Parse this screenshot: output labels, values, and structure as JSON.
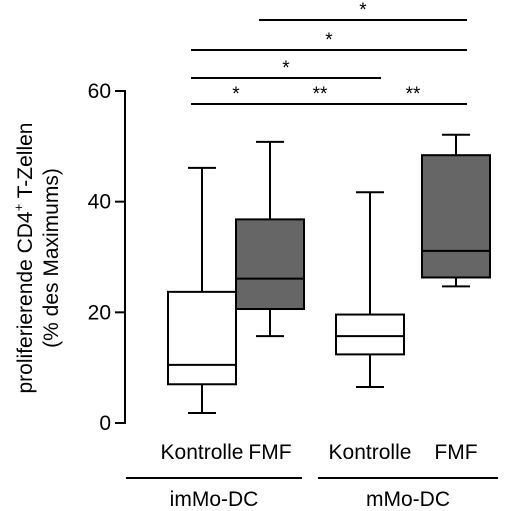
{
  "chart_data": {
    "type": "box",
    "ylabel": {
      "line1_pre": "proliferierende CD4",
      "line1_sup": "+",
      "line1_post": " T-Zellen",
      "line2": "(% des Maximums)"
    },
    "ylim": [
      0,
      60
    ],
    "yticks": [
      0,
      20,
      40,
      60
    ],
    "categories": [
      "Kontrolle",
      "FMF",
      "Kontrolle",
      "FMF"
    ],
    "groups": [
      {
        "label": "imMo-DC",
        "members": [
          0,
          1
        ]
      },
      {
        "label": "mMo-DC",
        "members": [
          2,
          3
        ]
      }
    ],
    "boxes": [
      {
        "min": 1.8,
        "q1": 7.0,
        "median": 10.5,
        "q3": 23.7,
        "max": 46.1,
        "color": "#ffffff"
      },
      {
        "min": 15.7,
        "q1": 20.6,
        "median": 26.1,
        "q3": 36.8,
        "max": 50.8,
        "color": "#666666"
      },
      {
        "min": 6.5,
        "q1": 12.4,
        "median": 15.7,
        "q3": 19.6,
        "max": 41.7,
        "color": "#ffffff"
      },
      {
        "min": 24.7,
        "q1": 26.3,
        "median": 31.1,
        "q3": 48.4,
        "max": 52.1,
        "color": "#666666"
      }
    ],
    "significance": [
      {
        "from": 0,
        "to": 1,
        "label": "*"
      },
      {
        "from": 1,
        "to": 2,
        "label": "**"
      },
      {
        "from": 2,
        "to": 3,
        "label": "**"
      },
      {
        "from": 0,
        "to": 2,
        "label": "*"
      },
      {
        "from": 0,
        "to": 3,
        "label": "*"
      },
      {
        "from": 1,
        "to": 3,
        "label": "*"
      }
    ]
  }
}
